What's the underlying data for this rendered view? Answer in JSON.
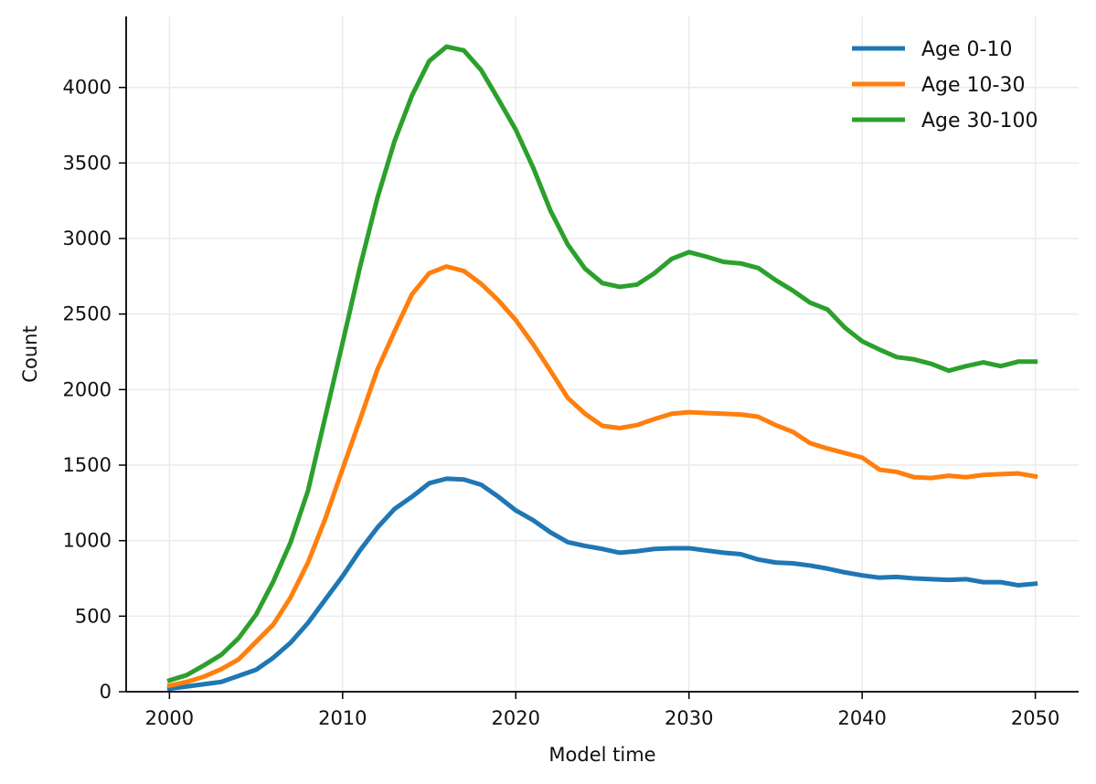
{
  "chart_data": {
    "type": "line",
    "xlabel": "Model time",
    "ylabel": "Count",
    "xlim": [
      1997.5,
      2052.5
    ],
    "ylim": [
      0,
      4470
    ],
    "x_ticks": [
      2000,
      2010,
      2020,
      2030,
      2040,
      2050
    ],
    "y_ticks": [
      0,
      500,
      1000,
      1500,
      2000,
      2500,
      3000,
      3500,
      4000
    ],
    "grid": true,
    "legend_position": "top-right",
    "x": [
      2000,
      2001,
      2002,
      2003,
      2004,
      2005,
      2006,
      2007,
      2008,
      2009,
      2010,
      2011,
      2012,
      2013,
      2014,
      2015,
      2016,
      2017,
      2018,
      2019,
      2020,
      2021,
      2022,
      2023,
      2024,
      2025,
      2026,
      2027,
      2028,
      2029,
      2030,
      2031,
      2032,
      2033,
      2034,
      2035,
      2036,
      2037,
      2038,
      2039,
      2040,
      2041,
      2042,
      2043,
      2044,
      2045,
      2046,
      2047,
      2048,
      2049,
      2050
    ],
    "series": [
      {
        "name": "Age 0-10",
        "color": "#1f77b4",
        "values": [
          20,
          35,
          50,
          65,
          105,
          145,
          225,
          325,
          455,
          610,
          765,
          935,
          1085,
          1210,
          1290,
          1380,
          1410,
          1405,
          1370,
          1290,
          1200,
          1135,
          1055,
          990,
          965,
          945,
          920,
          930,
          945,
          950,
          950,
          935,
          920,
          910,
          875,
          855,
          850,
          835,
          815,
          790,
          770,
          755,
          760,
          750,
          745,
          740,
          745,
          725,
          725,
          705,
          715
        ]
      },
      {
        "name": "Age 10-30",
        "color": "#ff7f0e",
        "values": [
          40,
          65,
          100,
          150,
          215,
          330,
          445,
          625,
          855,
          1145,
          1475,
          1800,
          2130,
          2385,
          2630,
          2770,
          2815,
          2785,
          2700,
          2590,
          2460,
          2300,
          2125,
          1945,
          1840,
          1760,
          1745,
          1765,
          1805,
          1840,
          1850,
          1845,
          1840,
          1835,
          1820,
          1765,
          1720,
          1645,
          1610,
          1580,
          1550,
          1470,
          1455,
          1420,
          1415,
          1430,
          1420,
          1435,
          1440,
          1445,
          1425
        ]
      },
      {
        "name": "Age 30-100",
        "color": "#2ca02c",
        "values": [
          75,
          110,
          175,
          245,
          355,
          510,
          730,
          990,
          1330,
          1820,
          2310,
          2810,
          3265,
          3645,
          3945,
          4175,
          4270,
          4245,
          4115,
          3920,
          3720,
          3470,
          3185,
          2960,
          2800,
          2705,
          2680,
          2695,
          2770,
          2865,
          2910,
          2880,
          2845,
          2835,
          2805,
          2725,
          2655,
          2575,
          2530,
          2410,
          2320,
          2265,
          2215,
          2200,
          2170,
          2125,
          2155,
          2180,
          2155,
          2185,
          2185
        ]
      }
    ]
  }
}
